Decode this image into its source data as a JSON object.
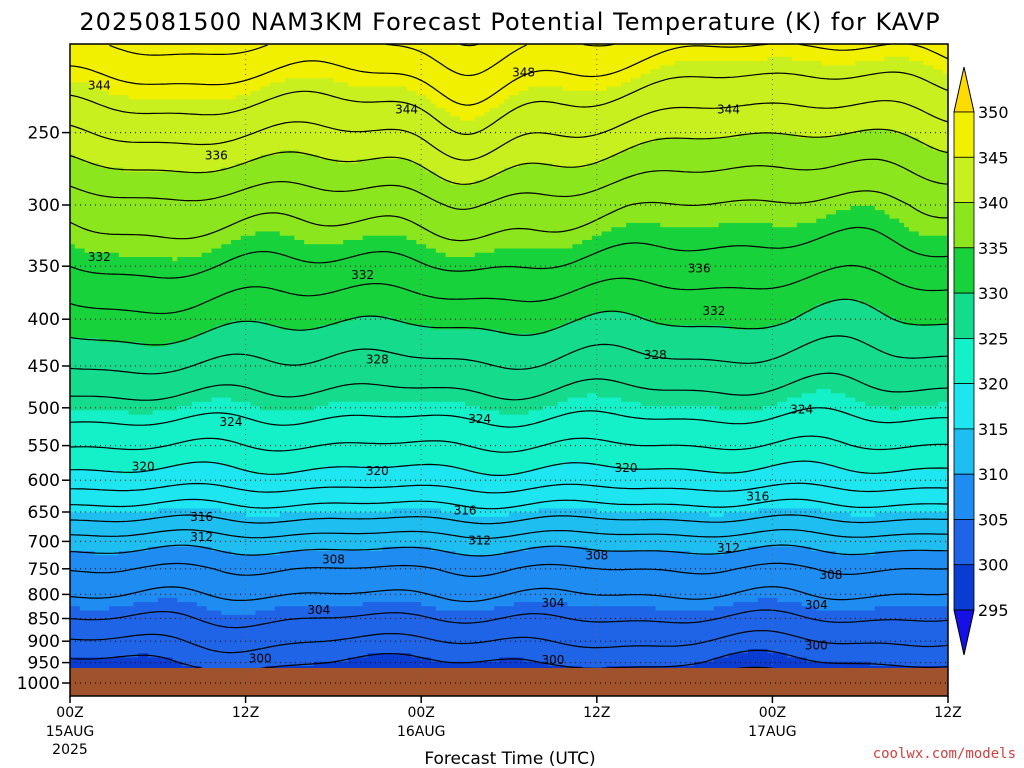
{
  "chart_data": {
    "type": "heatmap",
    "title": "2025081500 NAM3KM Forecast Potential Temperature (K) for KAVP",
    "xlabel": "Forecast Time (UTC)",
    "ylabel": "",
    "units": "K",
    "x_ticks": [
      {
        "label": "00Z",
        "sub": "15AUG",
        "sub2": "2025",
        "hour": 0
      },
      {
        "label": "12Z",
        "sub": "",
        "sub2": "",
        "hour": 12
      },
      {
        "label": "00Z",
        "sub": "16AUG",
        "sub2": "",
        "hour": 24
      },
      {
        "label": "12Z",
        "sub": "",
        "sub2": "",
        "hour": 36
      },
      {
        "label": "00Z",
        "sub": "17AUG",
        "sub2": "",
        "hour": 48
      },
      {
        "label": "12Z",
        "sub": "",
        "sub2": "",
        "hour": 60
      }
    ],
    "xlim": [
      0,
      60
    ],
    "y_ticks": [
      250,
      300,
      350,
      400,
      450,
      500,
      550,
      600,
      650,
      700,
      750,
      800,
      850,
      900,
      950,
      1000
    ],
    "ylim": [
      200,
      1000
    ],
    "y_scale": "log-pressure",
    "colorbar": {
      "levels": [
        295,
        300,
        305,
        310,
        315,
        320,
        325,
        330,
        335,
        340,
        345,
        350
      ],
      "colors": [
        "#1410e6",
        "#0a3cd2",
        "#1f64e6",
        "#1e8cf0",
        "#1ebef0",
        "#1ee6f0",
        "#14f0c8",
        "#14dc8c",
        "#18d23c",
        "#8ce61e",
        "#c8f01e",
        "#f0f000",
        "#ffdc00"
      ],
      "extend": "both",
      "tick_labels": [
        "295",
        "300",
        "305",
        "310",
        "315",
        "320",
        "325",
        "330",
        "335",
        "340",
        "345",
        "350"
      ]
    },
    "contour_interval": 2,
    "contour_profile": {
      "pressure": [
        1000,
        950,
        900,
        850,
        800,
        750,
        700,
        650,
        600,
        550,
        500,
        450,
        400,
        350,
        300,
        250,
        200
      ],
      "theta": [
        297,
        300,
        302,
        304,
        306,
        308,
        311,
        315,
        319,
        322,
        325,
        328,
        331,
        334,
        337,
        342,
        348
      ]
    },
    "contour_labels": [
      {
        "text": "348",
        "hour": 31,
        "p": 215
      },
      {
        "text": "344",
        "hour": 2,
        "p": 222
      },
      {
        "text": "344",
        "hour": 23,
        "p": 236
      },
      {
        "text": "344",
        "hour": 45,
        "p": 236
      },
      {
        "text": "336",
        "hour": 10,
        "p": 265
      },
      {
        "text": "332",
        "hour": 2,
        "p": 342
      },
      {
        "text": "332",
        "hour": 20,
        "p": 358
      },
      {
        "text": "336",
        "hour": 43,
        "p": 352
      },
      {
        "text": "332",
        "hour": 44,
        "p": 392
      },
      {
        "text": "328",
        "hour": 21,
        "p": 443
      },
      {
        "text": "328",
        "hour": 40,
        "p": 438
      },
      {
        "text": "324",
        "hour": 11,
        "p": 518
      },
      {
        "text": "324",
        "hour": 28,
        "p": 514
      },
      {
        "text": "324",
        "hour": 50,
        "p": 502
      },
      {
        "text": "320",
        "hour": 5,
        "p": 580
      },
      {
        "text": "320",
        "hour": 21,
        "p": 586
      },
      {
        "text": "320",
        "hour": 38,
        "p": 582
      },
      {
        "text": "316",
        "hour": 9,
        "p": 658
      },
      {
        "text": "316",
        "hour": 27,
        "p": 648
      },
      {
        "text": "316",
        "hour": 47,
        "p": 625
      },
      {
        "text": "312",
        "hour": 9,
        "p": 692
      },
      {
        "text": "312",
        "hour": 28,
        "p": 698
      },
      {
        "text": "312",
        "hour": 45,
        "p": 712
      },
      {
        "text": "308",
        "hour": 18,
        "p": 733
      },
      {
        "text": "308",
        "hour": 36,
        "p": 725
      },
      {
        "text": "308",
        "hour": 52,
        "p": 762
      },
      {
        "text": "304",
        "hour": 17,
        "p": 832
      },
      {
        "text": "304",
        "hour": 33,
        "p": 818
      },
      {
        "text": "304",
        "hour": 51,
        "p": 822
      },
      {
        "text": "300",
        "hour": 13,
        "p": 940
      },
      {
        "text": "300",
        "hour": 33,
        "p": 944
      },
      {
        "text": "300",
        "hour": 51,
        "p": 910
      }
    ],
    "grid": true
  },
  "credit": "coolwx.com/models"
}
